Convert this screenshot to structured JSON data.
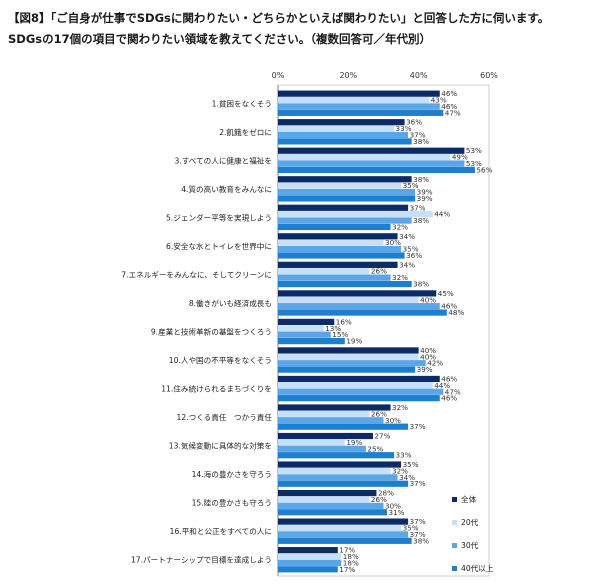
{
  "header": {
    "line1": "【図8】「ご自身が仕事でSDGsに関わりたい・どちらかといえば関わりたい」と回答した方に伺います。",
    "line2": "SDGsの17個の項目で関わりたい領域を教えてください。（複数回答可／年代別）"
  },
  "chart_data": {
    "type": "bar",
    "orientation": "horizontal",
    "xlim": [
      0,
      60
    ],
    "ticks": [
      "0%",
      "20%",
      "40%",
      "60%"
    ],
    "tick_values": [
      0,
      20,
      40,
      60
    ],
    "legend_position": "bottom-right",
    "categories": [
      "1.貧困をなくそう",
      "2.飢餓をゼロに",
      "3.すべての人に健康と福祉を",
      "4.質の高い教育をみんなに",
      "5.ジェンダー平等を実現しよう",
      "6.安全な水とトイレを世界中に",
      "7.エネルギーをみんなに、そしてクリーンに",
      "8.働きがいも経済成長も",
      "9.産業と技術革新の基盤をつくろう",
      "10.人や国の不平等をなくそう",
      "11.住み続けられるまちづくりを",
      "12.つくる責任　つかう責任",
      "13.気候変動に具体的な対策を",
      "14.海の豊かさを守ろう",
      "15.陸の豊かさも守ろう",
      "16.平和と公正をすべての人に",
      "17.パートナーシップで目標を達成しよう"
    ],
    "series": [
      {
        "name": "全体",
        "color": "#0b2a66",
        "values": [
          46,
          36,
          53,
          38,
          37,
          34,
          34,
          45,
          16,
          40,
          46,
          32,
          27,
          35,
          28,
          37,
          17
        ]
      },
      {
        "name": "20代",
        "color": "#c6e0f7",
        "values": [
          43,
          33,
          49,
          35,
          44,
          30,
          26,
          40,
          13,
          40,
          44,
          26,
          19,
          32,
          26,
          35,
          18
        ]
      },
      {
        "name": "30代",
        "color": "#5aa6e6",
        "values": [
          46,
          37,
          53,
          39,
          38,
          35,
          32,
          46,
          15,
          42,
          47,
          30,
          25,
          34,
          30,
          37,
          18
        ]
      },
      {
        "name": "40代以上",
        "color": "#1e7fd1",
        "values": [
          47,
          38,
          56,
          39,
          32,
          36,
          38,
          48,
          19,
          39,
          46,
          37,
          33,
          37,
          31,
          38,
          17
        ]
      }
    ],
    "value_suffix": "%"
  }
}
